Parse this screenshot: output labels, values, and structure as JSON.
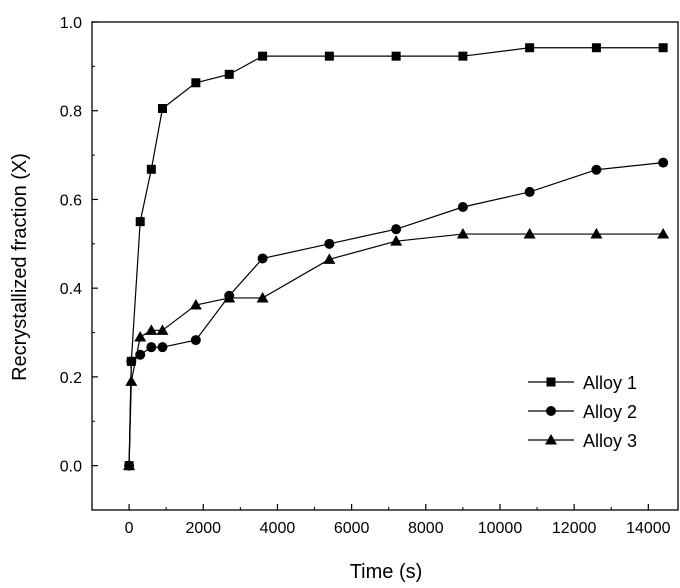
{
  "chart_data": {
    "type": "line",
    "title": "",
    "xlabel": "Time (s)",
    "ylabel": "Recrystallized fraction (X)",
    "xlim": [
      -1000,
      14800
    ],
    "ylim": [
      -0.1,
      1.0
    ],
    "x_ticks": [
      0,
      2000,
      4000,
      6000,
      8000,
      10000,
      12000,
      14000
    ],
    "x_tick_labels": [
      "0",
      "2000",
      "4000",
      "6000",
      "8000",
      "10000",
      "12000",
      "14000"
    ],
    "y_ticks": [
      0.0,
      0.2,
      0.4,
      0.6,
      0.8,
      1.0
    ],
    "y_tick_labels": [
      "0.0",
      "0.2",
      "0.4",
      "0.6",
      "0.8",
      "1.0"
    ],
    "legend_position": "bottom-right",
    "grid": false,
    "series": [
      {
        "name": "Alloy 1",
        "marker": "square",
        "x": [
          0,
          60,
          300,
          600,
          900,
          1800,
          2700,
          3600,
          5400,
          7200,
          9000,
          10800,
          12600,
          14400
        ],
        "y": [
          0.0,
          0.235,
          0.55,
          0.668,
          0.805,
          0.863,
          0.882,
          0.923,
          0.923,
          0.923,
          0.923,
          0.942,
          0.942,
          0.942
        ]
      },
      {
        "name": "Alloy 2",
        "marker": "circle",
        "x": [
          0,
          60,
          300,
          600,
          900,
          1800,
          2700,
          3600,
          5400,
          7200,
          9000,
          10800,
          12600,
          14400
        ],
        "y": [
          0.0,
          0.235,
          0.25,
          0.267,
          0.267,
          0.283,
          0.383,
          0.467,
          0.5,
          0.533,
          0.583,
          0.617,
          0.667,
          0.683
        ]
      },
      {
        "name": "Alloy 3",
        "marker": "triangle",
        "x": [
          0,
          60,
          300,
          600,
          900,
          1800,
          2700,
          3600,
          5400,
          7200,
          9000,
          10800,
          12600,
          14400
        ],
        "y": [
          0.0,
          0.19,
          0.29,
          0.305,
          0.305,
          0.362,
          0.378,
          0.378,
          0.465,
          0.506,
          0.522,
          0.522,
          0.522,
          0.522
        ]
      }
    ]
  }
}
